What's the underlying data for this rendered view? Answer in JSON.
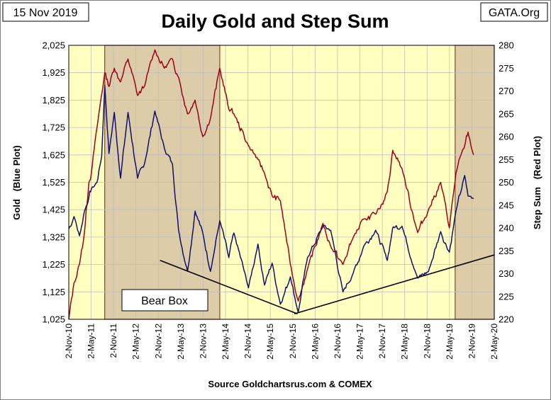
{
  "chart_data": {
    "type": "line",
    "title": "Daily Gold and Step Sum",
    "date_stamp": "15 Nov 2019",
    "publisher": "GATA.Org",
    "source": "Source Goldchartsrus.com & COMEX",
    "xlabel": "",
    "ylabel_left": "Gold   (Blue Plot)",
    "ylabel_right": "Step Sum   (Red Plot)",
    "x_ticks": [
      "2-Nov-10",
      "2-May-11",
      "2-Nov-11",
      "2-May-12",
      "2-Nov-12",
      "2-May-13",
      "2-Nov-13",
      "2-May-14",
      "2-Nov-14",
      "2-May-15",
      "2-Nov-15",
      "2-May-16",
      "2-Nov-16",
      "2-May-17",
      "2-Nov-17",
      "2-May-18",
      "2-Nov-18",
      "2-May-19",
      "2-Nov-19",
      "2-May-20"
    ],
    "y_left_ticks": [
      "1,025",
      "1,125",
      "1,225",
      "1,325",
      "1,425",
      "1,525",
      "1,625",
      "1,725",
      "1,825",
      "1,925",
      "2,025"
    ],
    "y_right_ticks": [
      "220",
      "225",
      "230",
      "235",
      "240",
      "245",
      "250",
      "255",
      "260",
      "265",
      "270",
      "275",
      "280"
    ],
    "y_left_range": [
      1025,
      2025
    ],
    "y_right_range": [
      220,
      280
    ],
    "grid": true,
    "annotation_label": "Bear Box",
    "shaded_regions": [
      {
        "from": "2011-08-22",
        "to": "2014-03-17"
      },
      {
        "from": "2019-06-18",
        "to": "2020-05-02"
      }
    ],
    "trendlines": [
      {
        "from": {
          "date": "2012-11-15",
          "gold": 1240
        },
        "to": {
          "date": "2015-12-10",
          "gold": 1045
        }
      },
      {
        "from": {
          "date": "2015-11-15",
          "gold": 1045
        },
        "to": {
          "date": "2020-05-02",
          "gold": 1260
        }
      }
    ],
    "series": [
      {
        "name": "Gold",
        "axis": "left",
        "points": [
          [
            "2010-11-02",
            1355
          ],
          [
            "2010-12-15",
            1400
          ],
          [
            "2011-01-28",
            1330
          ],
          [
            "2011-03-10",
            1420
          ],
          [
            "2011-04-15",
            1470
          ],
          [
            "2011-05-05",
            1500
          ],
          [
            "2011-06-20",
            1525
          ],
          [
            "2011-07-28",
            1620
          ],
          [
            "2011-08-22",
            1880
          ],
          [
            "2011-09-26",
            1630
          ],
          [
            "2011-11-08",
            1780
          ],
          [
            "2011-12-29",
            1540
          ],
          [
            "2012-02-28",
            1780
          ],
          [
            "2012-05-16",
            1540
          ],
          [
            "2012-07-10",
            1590
          ],
          [
            "2012-10-04",
            1785
          ],
          [
            "2012-12-20",
            1650
          ],
          [
            "2013-02-25",
            1590
          ],
          [
            "2013-04-15",
            1350
          ],
          [
            "2013-06-27",
            1200
          ],
          [
            "2013-08-28",
            1420
          ],
          [
            "2013-10-30",
            1340
          ],
          [
            "2013-12-31",
            1200
          ],
          [
            "2014-03-17",
            1385
          ],
          [
            "2014-05-30",
            1250
          ],
          [
            "2014-07-10",
            1340
          ],
          [
            "2014-11-06",
            1140
          ],
          [
            "2015-01-22",
            1300
          ],
          [
            "2015-03-17",
            1150
          ],
          [
            "2015-05-18",
            1230
          ],
          [
            "2015-07-24",
            1080
          ],
          [
            "2015-10-14",
            1180
          ],
          [
            "2015-12-17",
            1050
          ],
          [
            "2016-03-01",
            1250
          ],
          [
            "2016-07-06",
            1365
          ],
          [
            "2016-09-06",
            1350
          ],
          [
            "2016-12-15",
            1125
          ],
          [
            "2017-03-10",
            1195
          ],
          [
            "2017-06-06",
            1295
          ],
          [
            "2017-09-08",
            1350
          ],
          [
            "2017-12-12",
            1240
          ],
          [
            "2018-01-25",
            1360
          ],
          [
            "2018-04-11",
            1365
          ],
          [
            "2018-08-16",
            1175
          ],
          [
            "2018-11-13",
            1200
          ],
          [
            "2019-02-20",
            1345
          ],
          [
            "2019-05-02",
            1270
          ],
          [
            "2019-06-25",
            1420
          ],
          [
            "2019-09-04",
            1550
          ],
          [
            "2019-10-01",
            1475
          ],
          [
            "2019-11-15",
            1465
          ]
        ]
      },
      {
        "name": "Step Sum",
        "axis": "right",
        "points": [
          [
            "2010-11-02",
            220
          ],
          [
            "2010-12-15",
            228
          ],
          [
            "2011-01-28",
            232
          ],
          [
            "2011-03-10",
            239
          ],
          [
            "2011-04-15",
            250
          ],
          [
            "2011-05-05",
            252
          ],
          [
            "2011-06-20",
            262
          ],
          [
            "2011-08-22",
            274
          ],
          [
            "2011-09-26",
            271
          ],
          [
            "2011-11-08",
            275
          ],
          [
            "2011-12-29",
            272
          ],
          [
            "2012-02-28",
            277
          ],
          [
            "2012-05-16",
            269
          ],
          [
            "2012-07-10",
            271
          ],
          [
            "2012-10-04",
            279
          ],
          [
            "2012-12-20",
            275
          ],
          [
            "2013-02-25",
            277
          ],
          [
            "2013-04-15",
            273
          ],
          [
            "2013-06-27",
            265
          ],
          [
            "2013-08-28",
            268
          ],
          [
            "2013-10-30",
            260
          ],
          [
            "2013-12-31",
            264
          ],
          [
            "2014-03-17",
            275
          ],
          [
            "2014-05-30",
            266
          ],
          [
            "2014-07-10",
            265
          ],
          [
            "2014-11-06",
            258
          ],
          [
            "2015-01-22",
            255
          ],
          [
            "2015-03-17",
            252
          ],
          [
            "2015-05-18",
            247
          ],
          [
            "2015-07-24",
            246
          ],
          [
            "2015-10-14",
            232
          ],
          [
            "2015-12-17",
            224
          ],
          [
            "2016-03-01",
            231
          ],
          [
            "2016-07-06",
            241
          ],
          [
            "2016-09-06",
            236
          ],
          [
            "2016-12-15",
            232
          ],
          [
            "2017-03-10",
            238
          ],
          [
            "2017-06-06",
            242
          ],
          [
            "2017-09-08",
            243
          ],
          [
            "2017-12-12",
            248
          ],
          [
            "2018-01-25",
            257
          ],
          [
            "2018-04-11",
            253
          ],
          [
            "2018-08-16",
            239
          ],
          [
            "2018-11-13",
            244
          ],
          [
            "2019-02-20",
            250
          ],
          [
            "2019-05-02",
            240
          ],
          [
            "2019-06-25",
            252
          ],
          [
            "2019-09-04",
            258
          ],
          [
            "2019-10-01",
            261
          ],
          [
            "2019-11-15",
            256
          ]
        ]
      }
    ],
    "colors": {
      "gold_line": "#10106e",
      "step_line": "#a00018",
      "plot_bg": "#ffffc0",
      "shade": "#ddcca8",
      "shade_border": "#9b3a3a",
      "grid": "#bfbfbf",
      "trendline": "#000000"
    }
  }
}
